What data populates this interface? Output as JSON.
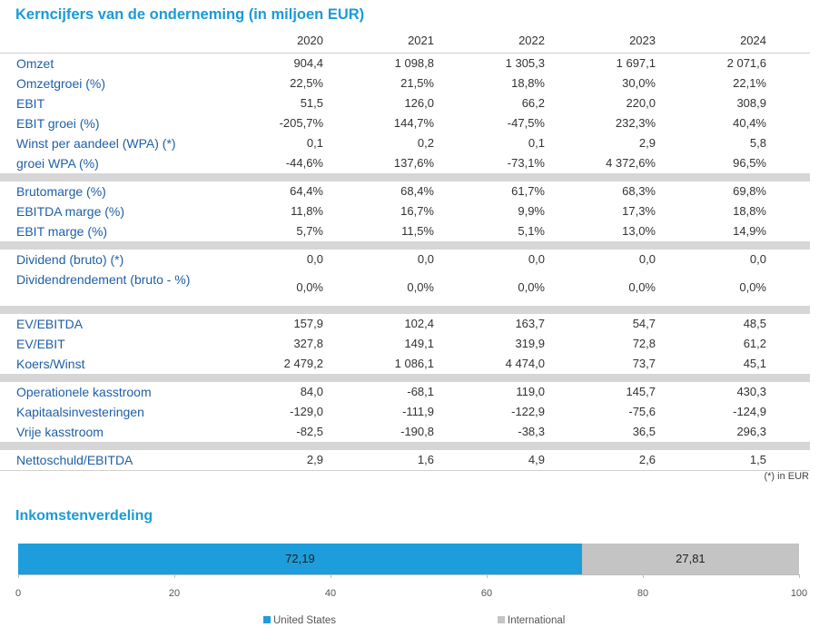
{
  "title": "Kerncijfers van de onderneming (in miljoen EUR)",
  "years": [
    "2020",
    "2021",
    "2022",
    "2023",
    "2024"
  ],
  "groups": [
    [
      {
        "label": "Omzet",
        "values": [
          "904,4",
          "1 098,8",
          "1 305,3",
          "1 697,1",
          "2 071,6"
        ]
      },
      {
        "label": "Omzetgroei (%)",
        "values": [
          "22,5%",
          "21,5%",
          "18,8%",
          "30,0%",
          "22,1%"
        ]
      },
      {
        "label": "EBIT",
        "values": [
          "51,5",
          "126,0",
          "66,2",
          "220,0",
          "308,9"
        ]
      },
      {
        "label": "EBIT groei (%)",
        "values": [
          "-205,7%",
          "144,7%",
          "-47,5%",
          "232,3%",
          "40,4%"
        ]
      },
      {
        "label": "Winst per aandeel (WPA) (*)",
        "values": [
          "0,1",
          "0,2",
          "0,1",
          "2,9",
          "5,8"
        ]
      },
      {
        "label": "groei WPA (%)",
        "values": [
          "-44,6%",
          "137,6%",
          "-73,1%",
          "4 372,6%",
          "96,5%"
        ]
      }
    ],
    [
      {
        "label": "Brutomarge (%)",
        "values": [
          "64,4%",
          "68,4%",
          "61,7%",
          "68,3%",
          "69,8%"
        ]
      },
      {
        "label": "EBITDA marge (%)",
        "values": [
          "11,8%",
          "16,7%",
          "9,9%",
          "17,3%",
          "18,8%"
        ]
      },
      {
        "label": "EBIT marge (%)",
        "values": [
          "5,7%",
          "11,5%",
          "5,1%",
          "13,0%",
          "14,9%"
        ]
      }
    ],
    [
      {
        "label": "Dividend (bruto) (*)",
        "values": [
          "0,0",
          "0,0",
          "0,0",
          "0,0",
          "0,0"
        ]
      },
      {
        "label": "Dividendrendement (bruto - %)",
        "values": [
          "0,0%",
          "0,0%",
          "0,0%",
          "0,0%",
          "0,0%"
        ]
      }
    ],
    [
      {
        "label": "EV/EBITDA",
        "values": [
          "157,9",
          "102,4",
          "163,7",
          "54,7",
          "48,5"
        ]
      },
      {
        "label": "EV/EBIT",
        "values": [
          "327,8",
          "149,1",
          "319,9",
          "72,8",
          "61,2"
        ]
      },
      {
        "label": "Koers/Winst",
        "values": [
          "2 479,2",
          "1 086,1",
          "4 474,0",
          "73,7",
          "45,1"
        ]
      }
    ],
    [
      {
        "label": "Operationele kasstroom",
        "values": [
          "84,0",
          "-68,1",
          "119,0",
          "145,7",
          "430,3"
        ]
      },
      {
        "label": "Kapitaalsinvesteringen",
        "values": [
          "-129,0",
          "-111,9",
          "-122,9",
          "-75,6",
          "-124,9"
        ]
      },
      {
        "label": "Vrije kasstroom",
        "values": [
          "-82,5",
          "-190,8",
          "-38,3",
          "36,5",
          "296,3"
        ]
      }
    ],
    [
      {
        "label": "Nettoschuld/EBITDA",
        "values": [
          "2,9",
          "1,6",
          "4,9",
          "2,6",
          "1,5"
        ]
      }
    ]
  ],
  "footnote": "(*) in EUR",
  "income_title": "Inkomstenverdeling",
  "colors": {
    "accent": "#1a9bd7",
    "us": "#1d9ddb",
    "international": "#c4c4c4"
  },
  "chart_data": {
    "type": "bar",
    "orientation": "horizontal-stacked",
    "series": [
      {
        "name": "United States",
        "values": [
          72.19
        ],
        "label": "72,19"
      },
      {
        "name": "International",
        "values": [
          27.81
        ],
        "label": "27,81"
      }
    ],
    "xlim": [
      0,
      100
    ],
    "xticks": [
      "0",
      "20",
      "40",
      "60",
      "80",
      "100"
    ],
    "legend": "bottom"
  }
}
